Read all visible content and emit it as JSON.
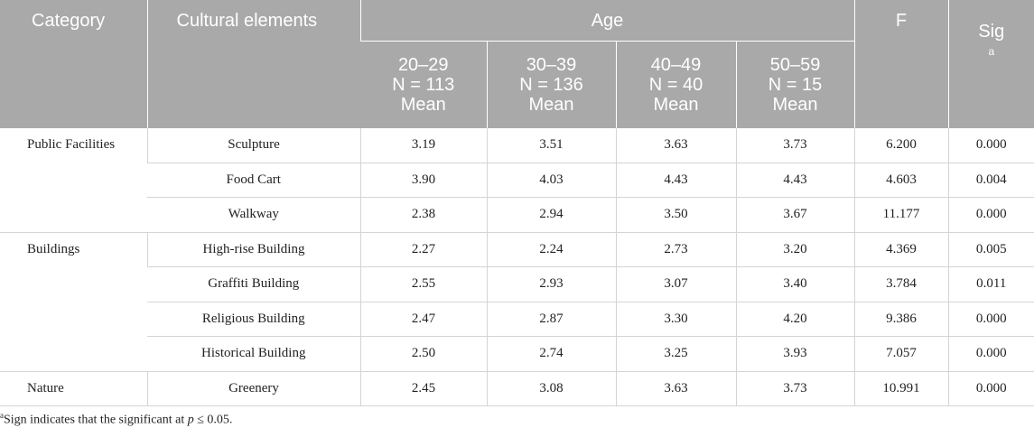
{
  "header": {
    "category": "Category",
    "cultural_elements": "Cultural elements",
    "age": "Age",
    "f": "F",
    "sig": "Sig",
    "sig_sup": "a",
    "age_groups": [
      {
        "range": "20–29",
        "n": "N = 113",
        "stat": "Mean"
      },
      {
        "range": "30–39",
        "n": "N = 136",
        "stat": "Mean"
      },
      {
        "range": "40–49",
        "n": "N = 40",
        "stat": "Mean"
      },
      {
        "range": "50–59",
        "n": "N = 15",
        "stat": "Mean"
      }
    ]
  },
  "categories": [
    {
      "label": "Public Facilities"
    },
    {
      "label": "Buildings"
    },
    {
      "label": "Nature"
    }
  ],
  "rows": [
    {
      "element": "Sculpture",
      "m1": "3.19",
      "m2": "3.51",
      "m3": "3.63",
      "m4": "3.73",
      "f": "6.200",
      "sig": "0.000"
    },
    {
      "element": "Food Cart",
      "m1": "3.90",
      "m2": "4.03",
      "m3": "4.43",
      "m4": "4.43",
      "f": "4.603",
      "sig": "0.004"
    },
    {
      "element": "Walkway",
      "m1": "2.38",
      "m2": "2.94",
      "m3": "3.50",
      "m4": "3.67",
      "f": "11.177",
      "sig": "0.000"
    },
    {
      "element": "High-rise Building",
      "m1": "2.27",
      "m2": "2.24",
      "m3": "2.73",
      "m4": "3.20",
      "f": "4.369",
      "sig": "0.005"
    },
    {
      "element": "Graffiti Building",
      "m1": "2.55",
      "m2": "2.93",
      "m3": "3.07",
      "m4": "3.40",
      "f": "3.784",
      "sig": "0.011"
    },
    {
      "element": "Religious Building",
      "m1": "2.47",
      "m2": "2.87",
      "m3": "3.30",
      "m4": "4.20",
      "f": "9.386",
      "sig": "0.000"
    },
    {
      "element": "Historical Building",
      "m1": "2.50",
      "m2": "2.74",
      "m3": "3.25",
      "m4": "3.93",
      "f": "7.057",
      "sig": "0.000"
    },
    {
      "element": "Greenery",
      "m1": "2.45",
      "m2": "3.08",
      "m3": "3.63",
      "m4": "3.73",
      "f": "10.991",
      "sig": "0.000"
    }
  ],
  "footnote": {
    "marker": "a",
    "text_before": "Sign indicates that the significant at ",
    "variable": "p",
    "text_after": " ≤ 0.05."
  },
  "colors": {
    "header_bg": "#a9a9a9",
    "header_text": "#ffffff",
    "row_border": "#d4d4d4"
  }
}
